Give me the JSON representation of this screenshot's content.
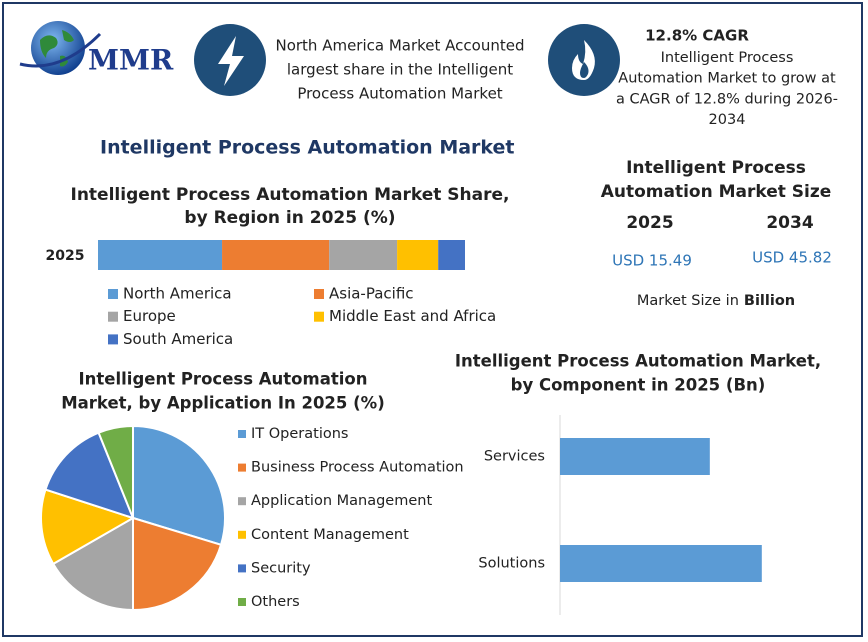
{
  "header": {
    "logo": "MMR",
    "box1": [
      "North America Market Accounted",
      "largest share in the Intelligent",
      "Process Automation Market"
    ],
    "box2_title": "12.8% CAGR",
    "box2_text": [
      "Intelligent Process",
      "Automation Market to grow at",
      "a CAGR of 12.8% during 2026-",
      "2034"
    ]
  },
  "title": "Intelligent Process Automation Market",
  "market_size": {
    "title": [
      "Intelligent Process",
      "Automation Market Size"
    ],
    "years": [
      "2025",
      "2034"
    ],
    "values": [
      "USD 15.49",
      "USD 45.82"
    ],
    "note": "Market Size in",
    "unit": "Billion"
  },
  "chart_data": [
    {
      "type": "stacked-bar",
      "title": [
        "Intelligent Process Automation Market Share,",
        "by Region in 2025 (%)"
      ],
      "categories": [
        "2025"
      ],
      "series": [
        {
          "name": "North America",
          "color": "#5b9bd5",
          "values": [
            33.8
          ]
        },
        {
          "name": "Asia-Pacific",
          "color": "#ed7d31",
          "values": [
            29.2
          ]
        },
        {
          "name": "Europe",
          "color": "#a5a5a5",
          "values": [
            18.5
          ]
        },
        {
          "name": "Middle East and Africa",
          "color": "#ffc000",
          "values": [
            11.2
          ]
        },
        {
          "name": "South America",
          "color": "#4472c4",
          "values": [
            7.3
          ]
        }
      ]
    },
    {
      "type": "pie",
      "title": [
        "Intelligent Process Automation",
        "Market, by Application In 2025 (%)"
      ],
      "categories": [
        "IT Operations",
        "Business Process Automation",
        "Application Management",
        "Content Management",
        "Security",
        "Others"
      ],
      "values": [
        29.7,
        20.3,
        16.7,
        13.3,
        13.9,
        6.1
      ],
      "colors": [
        "#5b9bd5",
        "#ed7d31",
        "#a5a5a5",
        "#ffc000",
        "#4472c4",
        "#70ad47"
      ]
    },
    {
      "type": "hbar",
      "title": [
        "Intelligent Process Automation Market,",
        "by Component in 2025 (Bn)"
      ],
      "categories": [
        "Services",
        "Solutions"
      ],
      "values": [
        6.6,
        8.89
      ],
      "color": "#5b9bd5"
    }
  ]
}
